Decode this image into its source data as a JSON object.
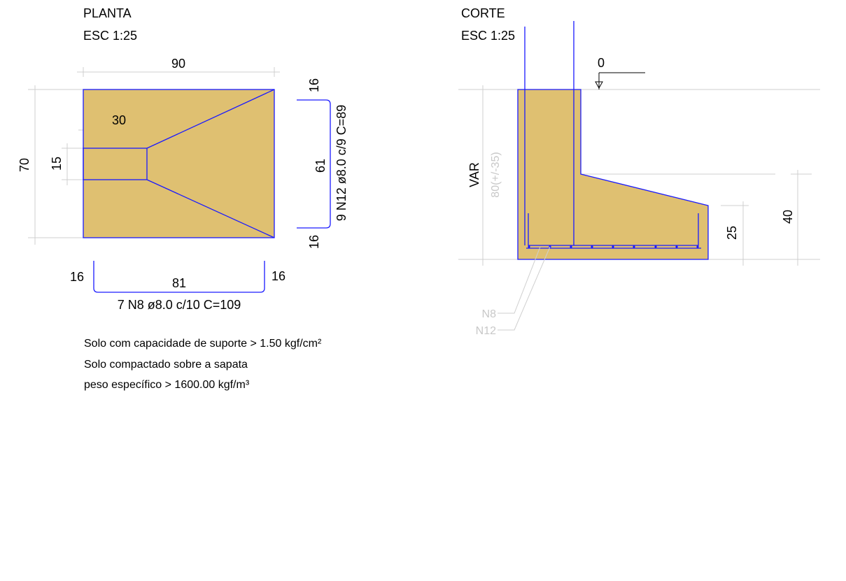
{
  "plan": {
    "title": "PLANTA",
    "scale": "ESC 1:25",
    "dim_width": "90",
    "dim_height": "70",
    "dim_pedestal_len": "30",
    "dim_pedestal_w": "15",
    "bar_right_top": "16",
    "bar_right_mid": "61",
    "bar_right_bottom": "16",
    "bar_right_label": "9 N12 ø8.0 c/9 C=89",
    "bar_bottom_left": "16",
    "bar_bottom_mid": "81",
    "bar_bottom_right": "16",
    "bar_bottom_label": "7 N8 ø8.0 c/10 C=109"
  },
  "notes": [
    "Solo com capacidade de suporte > 1.50 kgf/cm²",
    "Solo compactado sobre a sapata",
    "peso específico > 1600.00 kgf/m³"
  ],
  "section": {
    "title": "CORTE",
    "scale": "ESC 1:25",
    "level": "0",
    "var_label": "VAR",
    "depth_label": "80(+/-35)",
    "dim_base": "25",
    "dim_total": "40",
    "leader_n8": "N8",
    "leader_n12": "N12"
  },
  "colors": {
    "concrete_fill": "#dfc071",
    "outline": "#1a1aff",
    "dimension_lines": "#cfcfcf"
  }
}
